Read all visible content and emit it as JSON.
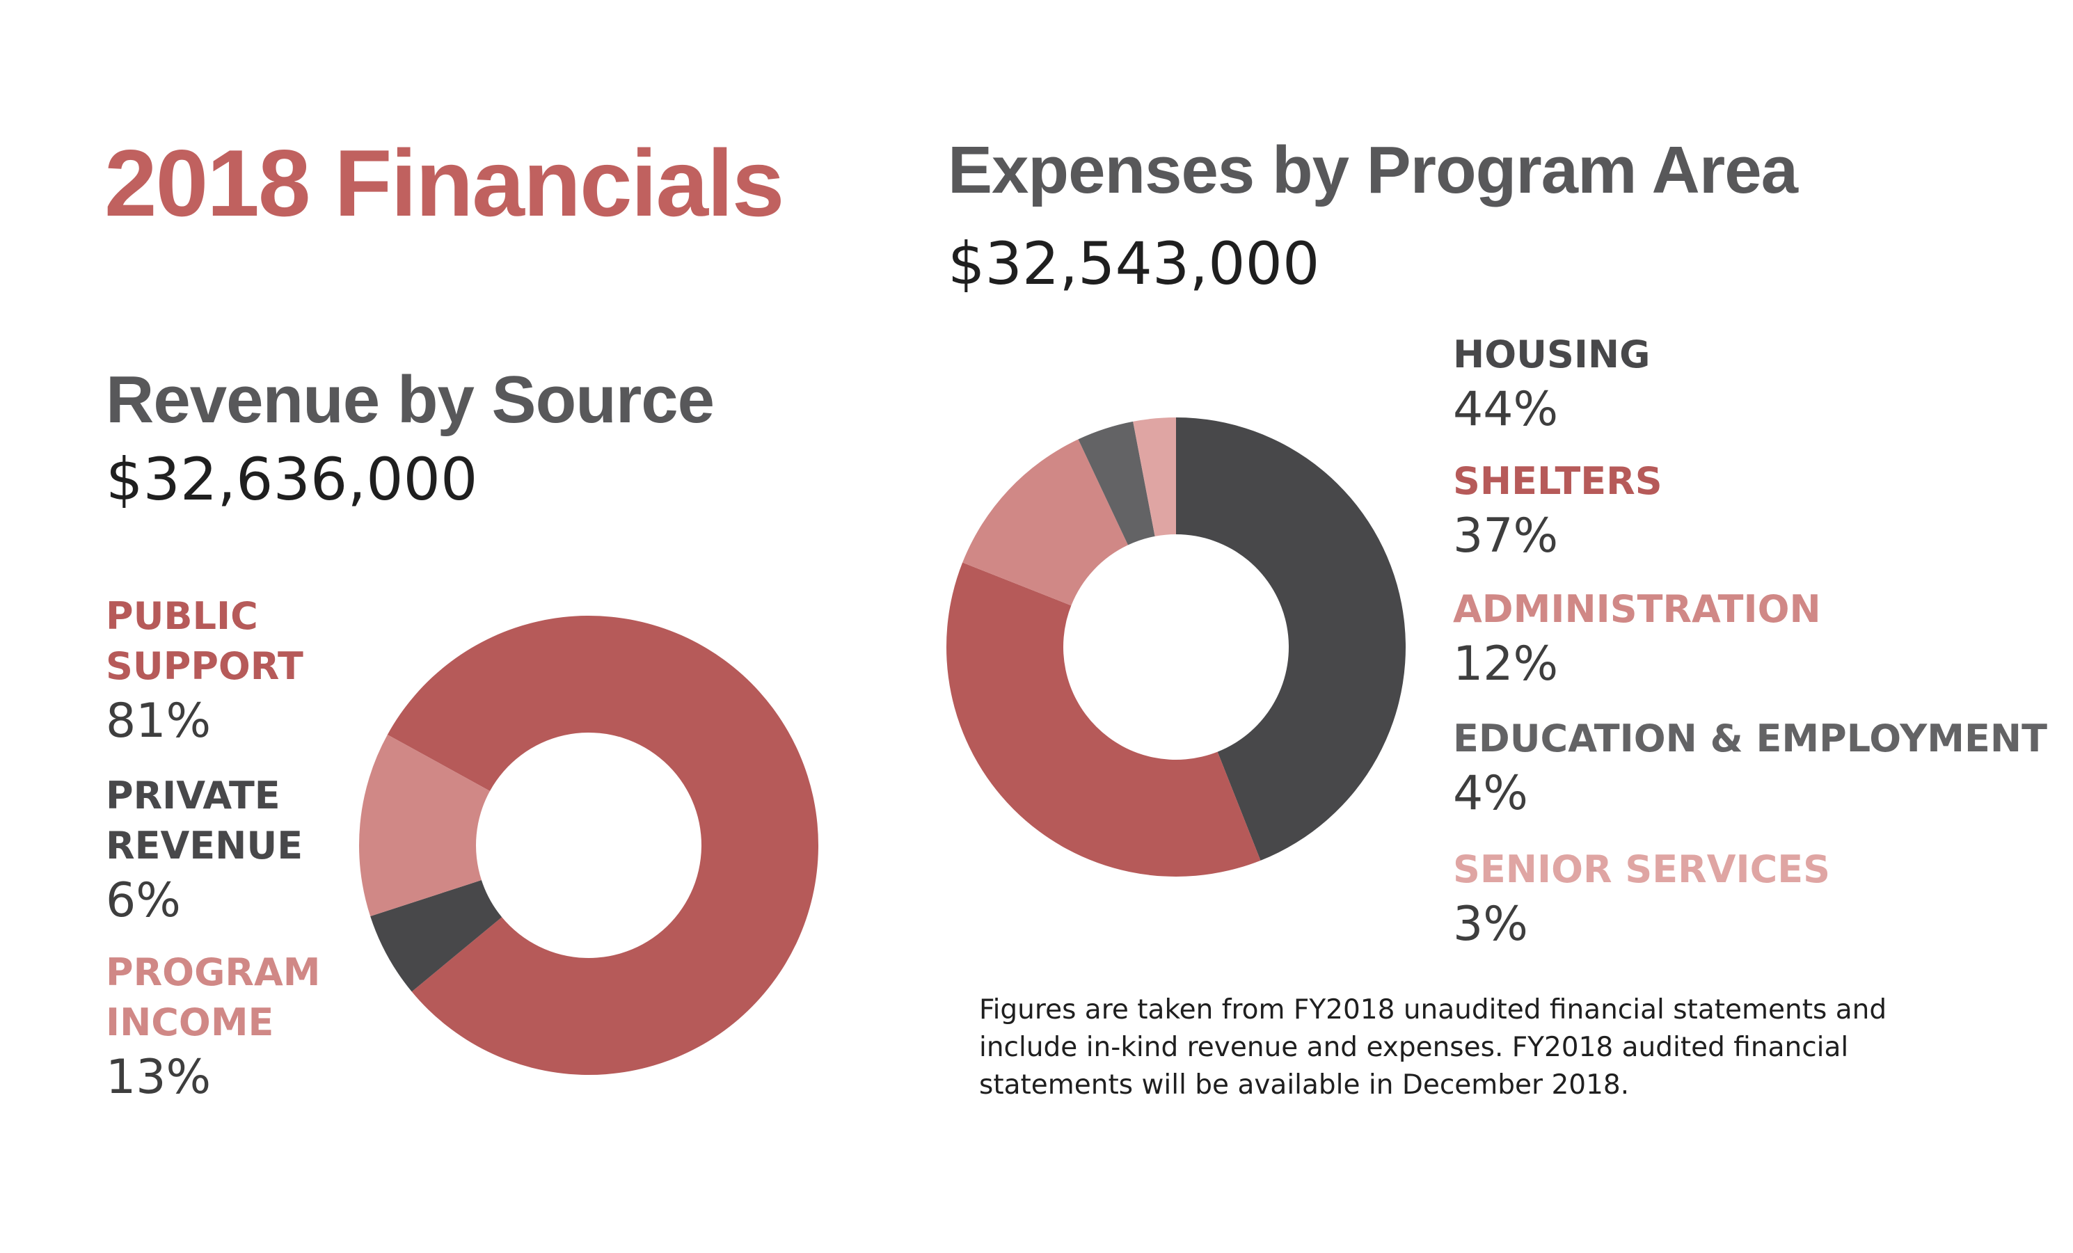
{
  "title": "2018 Financials",
  "colors": {
    "title": "#c0615f",
    "section_title": "#58585a",
    "public_support": "#b65a59",
    "private_revenue": "#48484a",
    "program_income": "#d08886",
    "housing": "#48484a",
    "shelters": "#b65a59",
    "administration": "#d08886",
    "education": "#636365",
    "senior_services": "#dfa5a3"
  },
  "chart_data": [
    {
      "type": "pie",
      "title": "Revenue by Source",
      "total": "$32,636,000",
      "slices": [
        {
          "label": "PUBLIC SUPPORT",
          "label_lines": [
            "PUBLIC",
            "SUPPORT"
          ],
          "value": 81,
          "pct": "81%",
          "color": "#b65a59"
        },
        {
          "label": "PRIVATE REVENUE",
          "label_lines": [
            "PRIVATE",
            "REVENUE"
          ],
          "value": 6,
          "pct": "6%",
          "color": "#48484a"
        },
        {
          "label": "PROGRAM INCOME",
          "label_lines": [
            "PROGRAM",
            "INCOME"
          ],
          "value": 13,
          "pct": "13%",
          "color": "#d08886"
        }
      ]
    },
    {
      "type": "pie",
      "title": "Expenses by Program Area",
      "total": "$32,543,000",
      "slices": [
        {
          "label": "HOUSING",
          "value": 44,
          "pct": "44%",
          "color": "#48484a"
        },
        {
          "label": "SHELTERS",
          "value": 37,
          "pct": "37%",
          "color": "#b65a59"
        },
        {
          "label": "ADMINISTRATION",
          "value": 12,
          "pct": "12%",
          "color": "#d08886"
        },
        {
          "label": "EDUCATION & EMPLOYMENT",
          "value": 4,
          "pct": "4%",
          "color": "#636365"
        },
        {
          "label": "SENIOR SERVICES",
          "value": 3,
          "pct": "3%",
          "color": "#dfa5a3"
        }
      ]
    }
  ],
  "footnote": "Figures are taken from FY2018 unaudited financial statements and include in-kind revenue and expenses. FY2018 audited financial statements will be available in December 2018."
}
